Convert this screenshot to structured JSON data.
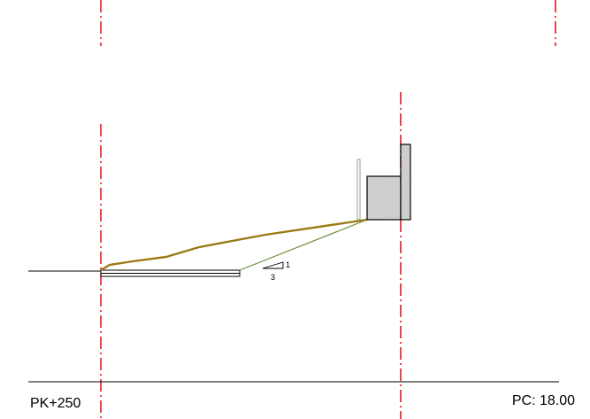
{
  "station_label": "PK+250",
  "elevation_label": "PC: 18.00",
  "slope_indicator": {
    "rise": "1",
    "run": "3"
  },
  "colors": {
    "axis_line": "#e8141e",
    "terrain_line": "#9a7a13",
    "slope_line": "#6f8f3e",
    "ground_line": "#000000",
    "wall_fill": "#c8c8c8"
  }
}
